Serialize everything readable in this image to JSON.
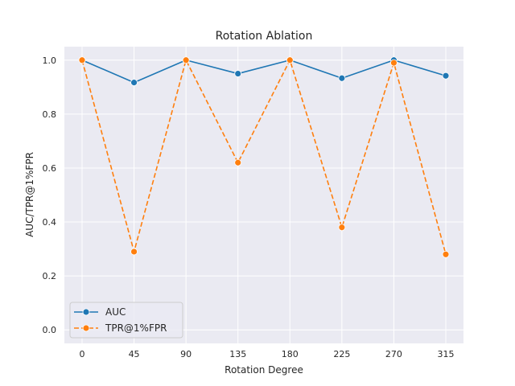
{
  "chart_data": {
    "type": "line",
    "title": "Rotation Ablation",
    "xlabel": "Rotation Degree",
    "ylabel": "AUC/TPR@1%FPR",
    "x": [
      0,
      45,
      90,
      135,
      180,
      225,
      270,
      315
    ],
    "x_ticks": [
      "0",
      "45",
      "90",
      "135",
      "180",
      "225",
      "270",
      "315"
    ],
    "y_ticks": [
      "0.0",
      "0.2",
      "0.4",
      "0.6",
      "0.8",
      "1.0"
    ],
    "ylim": [
      -0.05,
      1.05
    ],
    "grid": true,
    "legend_position": "lower-left",
    "series": [
      {
        "name": "AUC",
        "color": "#1f77b4",
        "linestyle": "solid",
        "marker": "circle",
        "values": [
          1.0,
          0.917,
          1.0,
          0.95,
          1.0,
          0.933,
          1.0,
          0.942
        ]
      },
      {
        "name": "TPR@1%FPR",
        "color": "#ff7f0e",
        "linestyle": "dashed",
        "marker": "circle",
        "values": [
          1.0,
          0.29,
          1.0,
          0.62,
          1.0,
          0.38,
          0.99,
          0.28
        ]
      }
    ]
  }
}
